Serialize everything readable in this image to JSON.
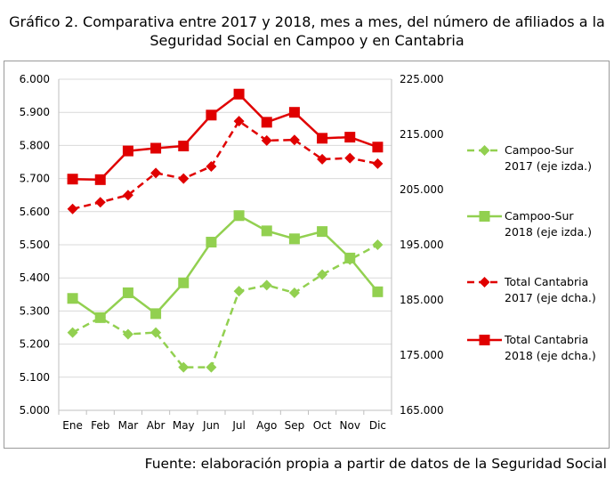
{
  "title_line1": "Gráfico 2. Comparativa entre 2017 y 2018, mes a mes, del número de afiliados a la",
  "title_line2": "Seguridad Social en Campoo y en Cantabria",
  "source": "Fuente: elaboración propia a partir de datos de la Seguridad Social",
  "colors": {
    "green": "#92d050",
    "red": "#e00000",
    "grid": "#d9d9d9",
    "axis": "#bfbfbf"
  },
  "chart_data": {
    "type": "line",
    "categories": [
      "Ene",
      "Feb",
      "Mar",
      "Abr",
      "May",
      "Jun",
      "Jul",
      "Ago",
      "Sep",
      "Oct",
      "Nov",
      "Dic"
    ],
    "y_left": {
      "ylim": [
        5000,
        6000
      ],
      "tick_labels": [
        "5.000",
        "5.100",
        "5.200",
        "5.300",
        "5.400",
        "5.500",
        "5.600",
        "5.700",
        "5.800",
        "5.900",
        "6.000"
      ]
    },
    "y_right": {
      "ylim": [
        165000,
        225000
      ],
      "tick_labels": [
        "165.000",
        "175.000",
        "185.000",
        "195.000",
        "205.000",
        "215.000",
        "225.000"
      ]
    },
    "grid": "horizontal",
    "legend_position": "right",
    "series": [
      {
        "name": "Campoo-Sur 2017 (eje izda.)",
        "legend_lines": [
          "Campoo-Sur",
          "2017 (eje izda.)"
        ],
        "axis": "left",
        "color": "green",
        "dashed": true,
        "marker": "diamond",
        "values": [
          5235,
          5280,
          5230,
          5235,
          5130,
          5130,
          5360,
          5378,
          5355,
          5410,
          5455,
          5500
        ]
      },
      {
        "name": "Campoo-Sur 2018 (eje izda.)",
        "legend_lines": [
          "Campoo-Sur",
          "2018 (eje izda.)"
        ],
        "axis": "left",
        "color": "green",
        "dashed": false,
        "marker": "square",
        "values": [
          5338,
          5280,
          5355,
          5292,
          5385,
          5508,
          5588,
          5542,
          5518,
          5540,
          5460,
          5358
        ]
      },
      {
        "name": "Total Cantabria 2017 (eje dcha.)",
        "legend_lines": [
          "Total Cantabria",
          "2017 (eje dcha.)"
        ],
        "axis": "right",
        "color": "red",
        "dashed": true,
        "marker": "diamond",
        "values": [
          201500,
          202700,
          204000,
          208000,
          207000,
          209200,
          217400,
          213900,
          214000,
          210500,
          210700,
          209700
        ]
      },
      {
        "name": "Total Cantabria 2018 (eje dcha.)",
        "legend_lines": [
          "Total Cantabria",
          "2018 (eje dcha.)"
        ],
        "axis": "right",
        "color": "red",
        "dashed": false,
        "marker": "square",
        "values": [
          206900,
          206800,
          212000,
          212500,
          212900,
          218500,
          222300,
          217200,
          219000,
          214300,
          214500,
          212700
        ]
      }
    ]
  }
}
